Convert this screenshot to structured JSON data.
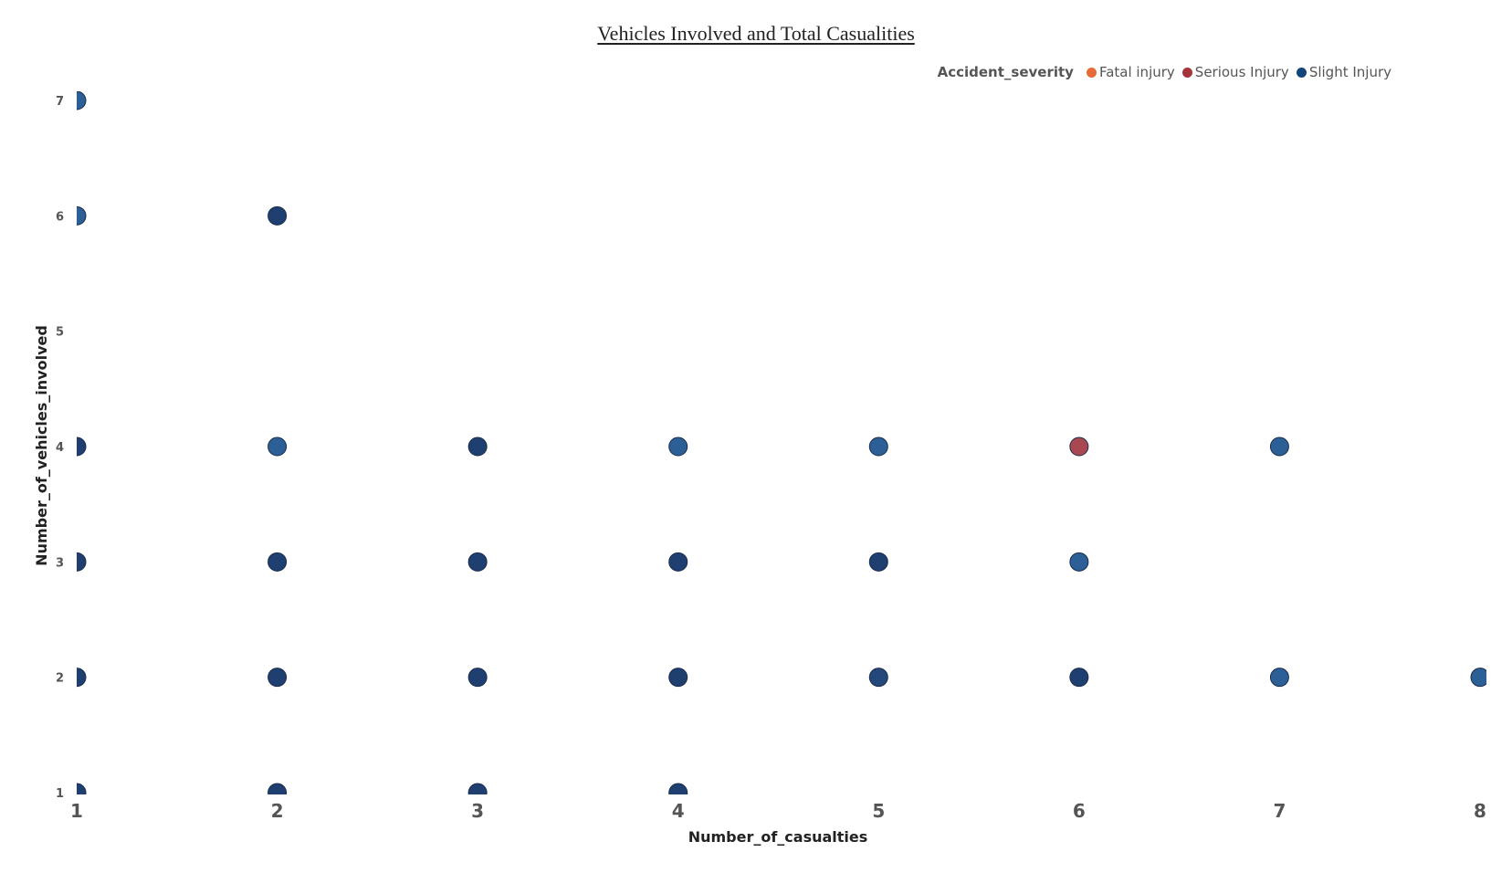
{
  "chart_data": {
    "type": "scatter",
    "title": "Vehicles Involved and Total Casualities",
    "xlabel": "Number_of_casualties",
    "ylabel": "Number_of_vehicles_involved",
    "xlim": [
      1,
      8
    ],
    "ylim": [
      1,
      7
    ],
    "x_ticks": [
      "1",
      "2",
      "3",
      "4",
      "5",
      "6",
      "7",
      "8"
    ],
    "y_ticks": [
      "1",
      "2",
      "3",
      "4",
      "5",
      "6",
      "7"
    ],
    "grid": false,
    "legend": {
      "title": "Accident_severity",
      "placement": "top-right",
      "entries": [
        {
          "name": "Fatal injury",
          "color": "#E66C37"
        },
        {
          "name": "Serious Injury",
          "color": "#A4343A"
        },
        {
          "name": "Slight Injury",
          "color": "#12467A"
        }
      ]
    },
    "points": [
      {
        "x": 1,
        "y": 7,
        "color": "#2B5F95"
      },
      {
        "x": 1,
        "y": 6,
        "color": "#2B5F95"
      },
      {
        "x": 1,
        "y": 4,
        "color": "#1F3F70"
      },
      {
        "x": 1,
        "y": 3,
        "color": "#1F3F70"
      },
      {
        "x": 1,
        "y": 2,
        "color": "#1F3F70"
      },
      {
        "x": 1,
        "y": 1,
        "color": "#1F3F70"
      },
      {
        "x": 2,
        "y": 6,
        "color": "#1F3F70"
      },
      {
        "x": 2,
        "y": 4,
        "color": "#2B5F95"
      },
      {
        "x": 2,
        "y": 3,
        "color": "#1F3F70"
      },
      {
        "x": 2,
        "y": 2,
        "color": "#1F3F70"
      },
      {
        "x": 2,
        "y": 1,
        "color": "#1F3F70"
      },
      {
        "x": 3,
        "y": 4,
        "color": "#1F3F70"
      },
      {
        "x": 3,
        "y": 3,
        "color": "#1F3F70"
      },
      {
        "x": 3,
        "y": 2,
        "color": "#1F3F70"
      },
      {
        "x": 3,
        "y": 1,
        "color": "#1F3F70"
      },
      {
        "x": 4,
        "y": 4,
        "color": "#2B5F95"
      },
      {
        "x": 4,
        "y": 3,
        "color": "#1F3F70"
      },
      {
        "x": 4,
        "y": 2,
        "color": "#1F3F70"
      },
      {
        "x": 4,
        "y": 1,
        "color": "#1F3F70"
      },
      {
        "x": 5,
        "y": 4,
        "color": "#2B5F95"
      },
      {
        "x": 5,
        "y": 3,
        "color": "#1F3F70"
      },
      {
        "x": 5,
        "y": 2,
        "color": "#24487A"
      },
      {
        "x": 6,
        "y": 4,
        "color": "#A94850"
      },
      {
        "x": 6,
        "y": 3,
        "color": "#2B5F95"
      },
      {
        "x": 6,
        "y": 2,
        "color": "#1F3F70"
      },
      {
        "x": 7,
        "y": 4,
        "color": "#2B5F95"
      },
      {
        "x": 7,
        "y": 2,
        "color": "#2B5F95"
      },
      {
        "x": 8,
        "y": 2,
        "color": "#2B5F95"
      }
    ]
  }
}
